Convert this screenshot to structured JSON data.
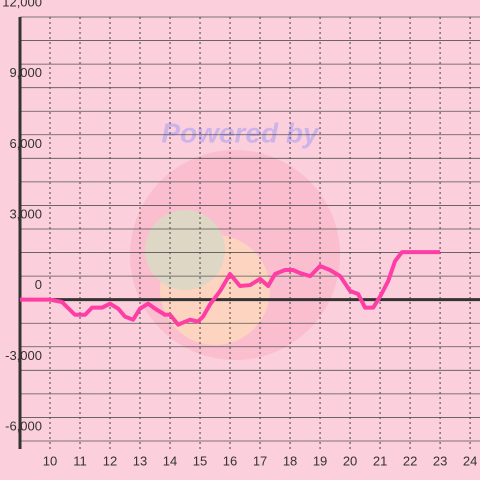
{
  "chart_data": {
    "type": "line",
    "watermark": "Powered by",
    "x": [
      9.0,
      10.0,
      10.4,
      10.83,
      11.17,
      11.4,
      11.73,
      12.0,
      12.27,
      12.5,
      12.77,
      13.0,
      13.27,
      13.5,
      13.83,
      14.0,
      14.27,
      14.67,
      14.93,
      15.1,
      15.33,
      15.67,
      16.0,
      16.33,
      16.67,
      17.0,
      17.27,
      17.5,
      17.83,
      18.1,
      18.33,
      18.67,
      19.0,
      19.33,
      19.67,
      20.0,
      20.27,
      20.5,
      20.77,
      21.0,
      21.27,
      21.5,
      21.73,
      23.0
    ],
    "series": [
      {
        "color": "#ff3ea5",
        "values": [
          0,
          0,
          -100,
          -640,
          -640,
          -340,
          -340,
          -170,
          -380,
          -720,
          -850,
          -380,
          -170,
          -380,
          -640,
          -640,
          -1060,
          -850,
          -930,
          -720,
          -210,
          370,
          1090,
          580,
          620,
          880,
          580,
          1090,
          1260,
          1260,
          1130,
          1000,
          1430,
          1260,
          1000,
          370,
          240,
          -340,
          -340,
          130,
          790,
          1640,
          2020,
          2020
        ]
      }
    ],
    "xlim": [
      9.0,
      24.33
    ],
    "xticks": [
      10,
      11,
      12,
      13,
      14,
      15,
      16,
      17,
      18,
      19,
      20,
      21,
      22,
      23,
      24
    ],
    "ylim": [
      -6000,
      12000
    ],
    "yticks": [
      {
        "value": -6000,
        "label": "-6,000"
      },
      {
        "value": -3000,
        "label": "-3,000"
      },
      0,
      {
        "value": 3000,
        "label": "3,000"
      },
      {
        "value": 6000,
        "label": "6,000"
      },
      {
        "value": 9000,
        "label": "9,000"
      },
      {
        "value": 12000,
        "label": "12,000"
      }
    ],
    "grid": true
  }
}
